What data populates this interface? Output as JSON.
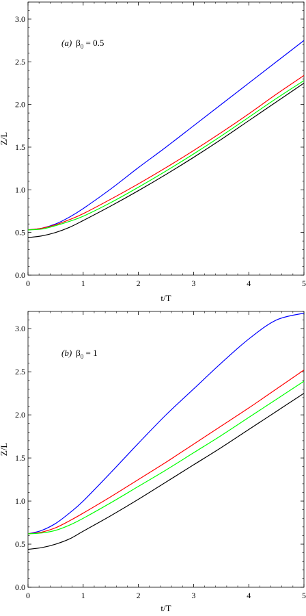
{
  "chart_data": [
    {
      "type": "line",
      "annotation": {
        "tag": "(a)",
        "symbol": "β",
        "subscript": "0",
        "value": " = 0.5"
      },
      "xlabel": "t/T",
      "ylabel": "Z/L",
      "xlim": [
        0,
        5
      ],
      "ylim": [
        0,
        3.2
      ],
      "xticks": [
        "0",
        "1",
        "2",
        "3",
        "4",
        "5"
      ],
      "yticks": [
        "0.0",
        "0.5",
        "1.0",
        "1.5",
        "2.0",
        "2.5",
        "3.0"
      ],
      "grid": false,
      "series": [
        {
          "color": "#0000ff",
          "x": [
            0,
            0.25,
            0.5,
            0.75,
            1,
            1.5,
            2,
            2.5,
            3,
            3.5,
            4,
            4.5,
            5
          ],
          "y": [
            0.53,
            0.55,
            0.6,
            0.68,
            0.78,
            1.01,
            1.26,
            1.5,
            1.75,
            2.0,
            2.25,
            2.5,
            2.75
          ]
        },
        {
          "color": "#ff0000",
          "x": [
            0,
            0.25,
            0.5,
            0.75,
            1,
            1.5,
            2,
            2.5,
            3,
            3.5,
            4,
            4.5,
            5
          ],
          "y": [
            0.53,
            0.55,
            0.59,
            0.65,
            0.72,
            0.89,
            1.07,
            1.26,
            1.46,
            1.67,
            1.89,
            2.12,
            2.34
          ]
        },
        {
          "color": "#00ff00",
          "x": [
            0,
            0.25,
            0.5,
            0.75,
            1,
            1.5,
            2,
            2.5,
            3,
            3.5,
            4,
            4.5,
            5
          ],
          "y": [
            0.53,
            0.54,
            0.58,
            0.63,
            0.69,
            0.85,
            1.03,
            1.22,
            1.42,
            1.63,
            1.85,
            2.07,
            2.28
          ]
        },
        {
          "color": "#000000",
          "x": [
            0,
            0.25,
            0.5,
            0.75,
            1,
            1.5,
            2,
            2.5,
            3,
            3.5,
            4,
            4.5,
            5
          ],
          "y": [
            0.44,
            0.46,
            0.5,
            0.56,
            0.64,
            0.81,
            0.99,
            1.18,
            1.38,
            1.59,
            1.81,
            2.03,
            2.25
          ]
        }
      ]
    },
    {
      "type": "line",
      "annotation": {
        "tag": "(b)",
        "symbol": "β",
        "subscript": "0",
        "value": " = 1"
      },
      "xlabel": "t/T",
      "ylabel": "Z/L",
      "xlim": [
        0,
        5
      ],
      "ylim": [
        0,
        3.2
      ],
      "xticks": [
        "0",
        "1",
        "2",
        "3",
        "4",
        "5"
      ],
      "yticks": [
        "0.0",
        "0.5",
        "1.0",
        "1.5",
        "2.0",
        "2.5",
        "3.0"
      ],
      "grid": false,
      "series": [
        {
          "color": "#0000ff",
          "x": [
            0,
            0.25,
            0.5,
            0.75,
            1,
            1.5,
            2,
            2.5,
            3,
            3.5,
            4,
            4.5,
            5
          ],
          "y": [
            0.62,
            0.66,
            0.74,
            0.86,
            1.0,
            1.33,
            1.67,
            2.0,
            2.3,
            2.6,
            2.88,
            3.1,
            3.18
          ]
        },
        {
          "color": "#ff0000",
          "x": [
            0,
            0.25,
            0.5,
            0.75,
            1,
            1.5,
            2,
            2.5,
            3,
            3.5,
            4,
            4.5,
            5
          ],
          "y": [
            0.62,
            0.64,
            0.69,
            0.77,
            0.86,
            1.05,
            1.25,
            1.45,
            1.66,
            1.87,
            2.08,
            2.3,
            2.52
          ]
        },
        {
          "color": "#00ff00",
          "x": [
            0,
            0.25,
            0.5,
            0.75,
            1,
            1.5,
            2,
            2.5,
            3,
            3.5,
            4,
            4.5,
            5
          ],
          "y": [
            0.62,
            0.63,
            0.66,
            0.72,
            0.8,
            0.98,
            1.17,
            1.36,
            1.56,
            1.76,
            1.97,
            2.18,
            2.39
          ]
        },
        {
          "color": "#000000",
          "x": [
            0,
            0.25,
            0.5,
            0.75,
            1,
            1.5,
            2,
            2.5,
            3,
            3.5,
            4,
            4.5,
            5
          ],
          "y": [
            0.44,
            0.46,
            0.5,
            0.56,
            0.65,
            0.83,
            1.02,
            1.22,
            1.42,
            1.62,
            1.83,
            2.04,
            2.25
          ]
        }
      ]
    }
  ]
}
